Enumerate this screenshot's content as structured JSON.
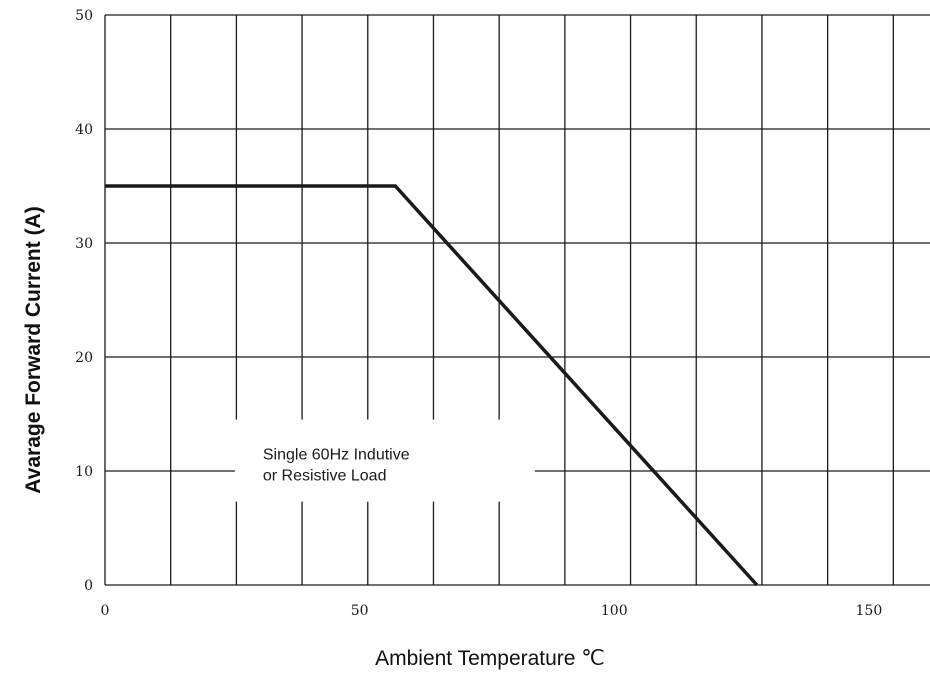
{
  "chart_data": {
    "type": "line",
    "title": "",
    "xlabel": "Ambient Temperature ℃",
    "ylabel": "Avarage Forward Current (A)",
    "xlim": [
      0,
      162
    ],
    "ylim": [
      0,
      50
    ],
    "grid": true,
    "x_grid_step": 12.9,
    "y_grid_step": 10,
    "x_ticks": [
      "0",
      "50",
      "100",
      "150"
    ],
    "x_tick_values": [
      0,
      50,
      100,
      150
    ],
    "y_ticks": [
      "0",
      "10",
      "20",
      "30",
      "40",
      "50"
    ],
    "y_tick_values": [
      0,
      10,
      20,
      30,
      40,
      50
    ],
    "series": [
      {
        "x": [
          0,
          57,
          128
        ],
        "y": [
          35,
          35,
          0
        ]
      }
    ],
    "annotation": {
      "lines": [
        "Single 60Hz Indutive",
        "or Resistive Load"
      ],
      "x": 31,
      "y": 11
    }
  }
}
